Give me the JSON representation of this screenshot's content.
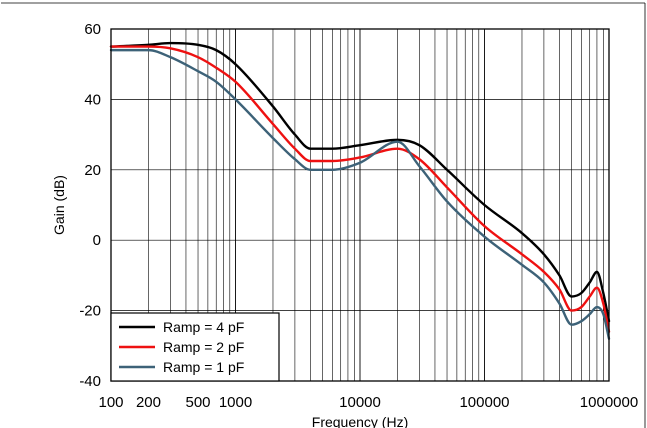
{
  "chart_data": {
    "type": "line",
    "xlabel": "Frequency (Hz)",
    "ylabel": "Gain (dB)",
    "x_scale": "log",
    "xlim": [
      100,
      1000000
    ],
    "ylim": [
      -40,
      60
    ],
    "x_ticks": [
      {
        "value": 100,
        "label": "100"
      },
      {
        "value": 200,
        "label": "200"
      },
      {
        "value": 500,
        "label": "500"
      },
      {
        "value": 1000,
        "label": "1000"
      },
      {
        "value": 10000,
        "label": "10000"
      },
      {
        "value": 100000,
        "label": "100000"
      },
      {
        "value": 1000000,
        "label": "1000000"
      }
    ],
    "y_ticks": [
      {
        "value": -40,
        "label": "-40"
      },
      {
        "value": -20,
        "label": "-20"
      },
      {
        "value": 0,
        "label": "0"
      },
      {
        "value": 20,
        "label": "20"
      },
      {
        "value": 40,
        "label": "40"
      },
      {
        "value": 60,
        "label": "60"
      }
    ],
    "grid": true,
    "legend_position": "bottom-left",
    "series": [
      {
        "name": "Ramp = 4 pF",
        "color": "#000000",
        "points": [
          [
            100,
            55
          ],
          [
            200,
            55.5
          ],
          [
            300,
            56
          ],
          [
            500,
            55.5
          ],
          [
            700,
            54
          ],
          [
            1000,
            50
          ],
          [
            2000,
            38
          ],
          [
            3000,
            30
          ],
          [
            4000,
            26
          ],
          [
            6000,
            26
          ],
          [
            10000,
            27
          ],
          [
            20000,
            28.5
          ],
          [
            30000,
            27
          ],
          [
            50000,
            20
          ],
          [
            100000,
            10
          ],
          [
            200000,
            2
          ],
          [
            300000,
            -4
          ],
          [
            400000,
            -10
          ],
          [
            500000,
            -16
          ],
          [
            600000,
            -15
          ],
          [
            700000,
            -12
          ],
          [
            800000,
            -9
          ],
          [
            900000,
            -15
          ],
          [
            1000000,
            -23
          ]
        ]
      },
      {
        "name": "Ramp = 2 pF",
        "color": "#ee1111",
        "points": [
          [
            100,
            55
          ],
          [
            200,
            55
          ],
          [
            300,
            54.5
          ],
          [
            500,
            52
          ],
          [
            700,
            49
          ],
          [
            1000,
            45
          ],
          [
            2000,
            33
          ],
          [
            3000,
            26
          ],
          [
            4000,
            22.5
          ],
          [
            6000,
            22.5
          ],
          [
            10000,
            23.5
          ],
          [
            20000,
            26
          ],
          [
            30000,
            23
          ],
          [
            50000,
            15
          ],
          [
            100000,
            4
          ],
          [
            200000,
            -4
          ],
          [
            300000,
            -9
          ],
          [
            400000,
            -14
          ],
          [
            500000,
            -20
          ],
          [
            600000,
            -19
          ],
          [
            700000,
            -16
          ],
          [
            800000,
            -13.5
          ],
          [
            900000,
            -18
          ],
          [
            1000000,
            -26
          ]
        ]
      },
      {
        "name": "Ramp = 1 pF",
        "color": "#3d6278",
        "points": [
          [
            100,
            54
          ],
          [
            200,
            54
          ],
          [
            300,
            52
          ],
          [
            500,
            48
          ],
          [
            700,
            45
          ],
          [
            1000,
            40
          ],
          [
            2000,
            29
          ],
          [
            3000,
            23
          ],
          [
            4000,
            20
          ],
          [
            6000,
            20
          ],
          [
            10000,
            22
          ],
          [
            20000,
            28
          ],
          [
            30000,
            21
          ],
          [
            50000,
            11
          ],
          [
            100000,
            1
          ],
          [
            200000,
            -7
          ],
          [
            300000,
            -12
          ],
          [
            400000,
            -18
          ],
          [
            500000,
            -24
          ],
          [
            600000,
            -23
          ],
          [
            700000,
            -21
          ],
          [
            800000,
            -19
          ],
          [
            900000,
            -21
          ],
          [
            1000000,
            -28
          ]
        ]
      }
    ]
  }
}
